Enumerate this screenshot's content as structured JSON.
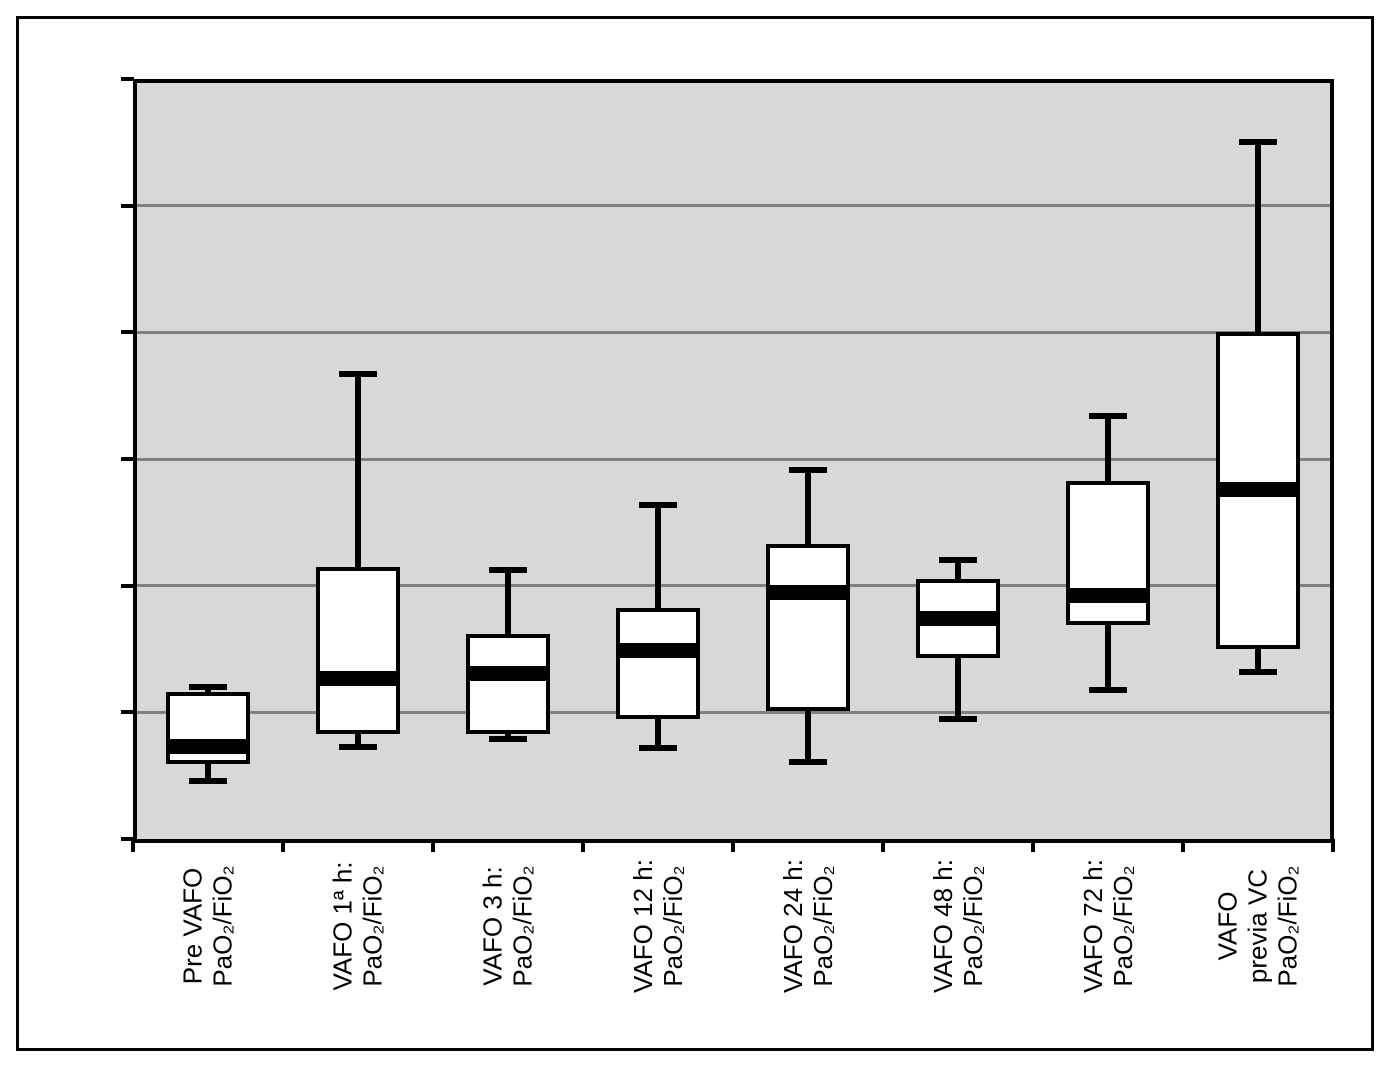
{
  "figure": {
    "background_color": "#ffffff",
    "border_color": "#000000"
  },
  "chart_data": {
    "type": "boxplot",
    "title": "",
    "xlabel": "",
    "ylabel": "",
    "ylim": [
      0,
      600
    ],
    "ytick_interval": 100,
    "yticks": [
      0,
      100,
      200,
      300,
      400,
      500,
      600
    ],
    "grid": true,
    "legend": false,
    "plot_background_color": "#d8d8d8",
    "grid_color": "#808080",
    "box_fill_color": "#ffffff",
    "line_color": "#000000",
    "categories": [
      {
        "label_lines": [
          "Pre VAFO",
          "PaO₂/FiO₂"
        ],
        "whisker_low": 46,
        "q1": 59,
        "median": 73,
        "q3": 116,
        "whisker_high": 120
      },
      {
        "label_lines": [
          "VAFO 1ª h:",
          "PaO₂/FiO₂"
        ],
        "whisker_low": 73,
        "q1": 83,
        "median": 127,
        "q3": 215,
        "whisker_high": 367
      },
      {
        "label_lines": [
          "VAFO 3 h:",
          "PaO₂/FiO₂"
        ],
        "whisker_low": 79,
        "q1": 83,
        "median": 131,
        "q3": 162,
        "whisker_high": 212
      },
      {
        "label_lines": [
          "VAFO 12 h:",
          "PaO₂/FiO₂"
        ],
        "whisker_low": 72,
        "q1": 95,
        "median": 149,
        "q3": 182,
        "whisker_high": 264
      },
      {
        "label_lines": [
          "VAFO 24 h:",
          "PaO₂/FiO₂"
        ],
        "whisker_low": 61,
        "q1": 101,
        "median": 195,
        "q3": 233,
        "whisker_high": 291
      },
      {
        "label_lines": [
          "VAFO 48 h:",
          "PaO₂/FiO₂"
        ],
        "whisker_low": 95,
        "q1": 143,
        "median": 174,
        "q3": 205,
        "whisker_high": 220
      },
      {
        "label_lines": [
          "VAFO 72 h:",
          "PaO₂/FiO₂"
        ],
        "whisker_low": 118,
        "q1": 169,
        "median": 192,
        "q3": 283,
        "whisker_high": 334
      },
      {
        "label_lines": [
          "VAFO",
          "previa VC",
          "PaO₂/FiO₂"
        ],
        "whisker_low": 132,
        "q1": 150,
        "median": 276,
        "q3": 400,
        "whisker_high": 550
      }
    ]
  }
}
